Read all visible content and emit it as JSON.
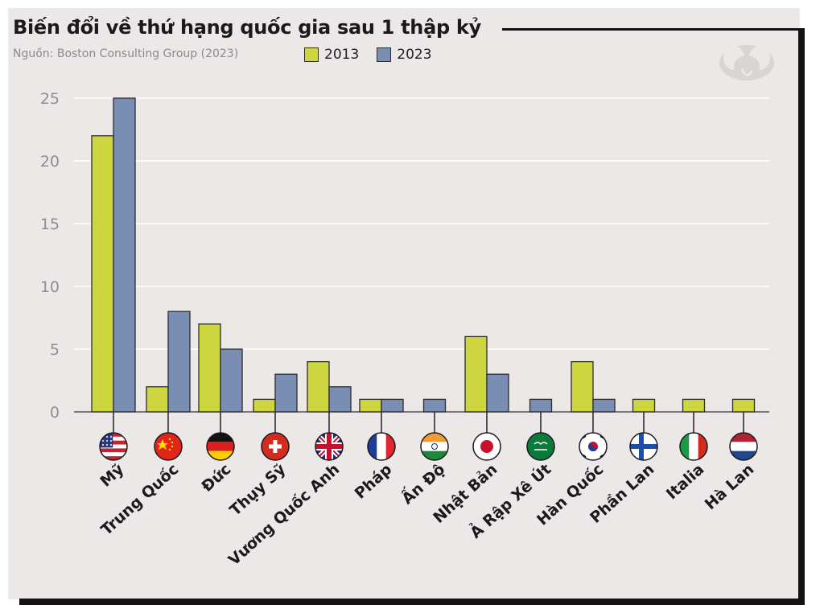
{
  "header": {
    "title": "Biến đổi về thứ hạng quốc gia sau 1 thập kỷ",
    "source": "Nguồn: Boston Consulting Group (2023)"
  },
  "logo": {
    "icon": "elephant-logo-icon"
  },
  "colors": {
    "series_2013": "#cdd63e",
    "series_2023": "#7a8db3",
    "bar_stroke": "#2d2d2d",
    "grid": "#ffffff",
    "background": "#ece8e7"
  },
  "chart_data": {
    "type": "bar",
    "title": "Biến đổi về thứ hạng quốc gia sau 1 thập kỷ",
    "xlabel": "",
    "ylabel": "",
    "ylim": [
      0,
      25
    ],
    "yticks": [
      0,
      5,
      10,
      15,
      20,
      25
    ],
    "grid": true,
    "legend_position": "top",
    "categories": [
      "Mỹ",
      "Trung Quốc",
      "Đức",
      "Thụy Sỹ",
      "Vương Quốc Anh",
      "Pháp",
      "Ấn Độ",
      "Nhật Bản",
      "Ả Rập Xê Út",
      "Hàn Quốc",
      "Phần Lan",
      "Italia",
      "Hà Lan"
    ],
    "flags": [
      "us-flag-icon",
      "china-flag-icon",
      "germany-flag-icon",
      "switzerland-flag-icon",
      "uk-flag-icon",
      "france-flag-icon",
      "india-flag-icon",
      "japan-flag-icon",
      "saudi-arabia-flag-icon",
      "south-korea-flag-icon",
      "finland-flag-icon",
      "italy-flag-icon",
      "netherlands-flag-icon"
    ],
    "series": [
      {
        "name": "2013",
        "values": [
          22,
          2,
          7,
          1,
          4,
          1,
          null,
          6,
          null,
          4,
          1,
          1,
          1
        ]
      },
      {
        "name": "2023",
        "values": [
          25,
          8,
          5,
          3,
          2,
          1,
          1,
          3,
          1,
          1,
          null,
          null,
          null
        ]
      }
    ]
  }
}
